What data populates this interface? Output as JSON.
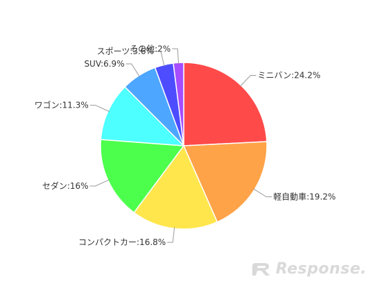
{
  "chart_data": {
    "type": "pie",
    "slices": [
      {
        "label": "ミニバン:24.2%",
        "value": 24.2,
        "color": "#ff4a4a"
      },
      {
        "label": "軽自動車:19.2%",
        "value": 19.2,
        "color": "#ffa348"
      },
      {
        "label": "コンパクトカー:16.8%",
        "value": 16.8,
        "color": "#ffe64d"
      },
      {
        "label": "セダン:16%",
        "value": 16.0,
        "color": "#4dff4d"
      },
      {
        "label": "ワゴン:11.3%",
        "value": 11.3,
        "color": "#4dffff"
      },
      {
        "label": "SUV:6.9%",
        "value": 6.9,
        "color": "#4da6ff"
      },
      {
        "label": "スポーツ:3.6%",
        "value": 3.6,
        "color": "#4d4dff"
      },
      {
        "label": "その他:2%",
        "value": 2.0,
        "color": "#a64dff"
      }
    ],
    "start": "top",
    "direction": "clockwise"
  },
  "watermark": {
    "text": "Response."
  }
}
